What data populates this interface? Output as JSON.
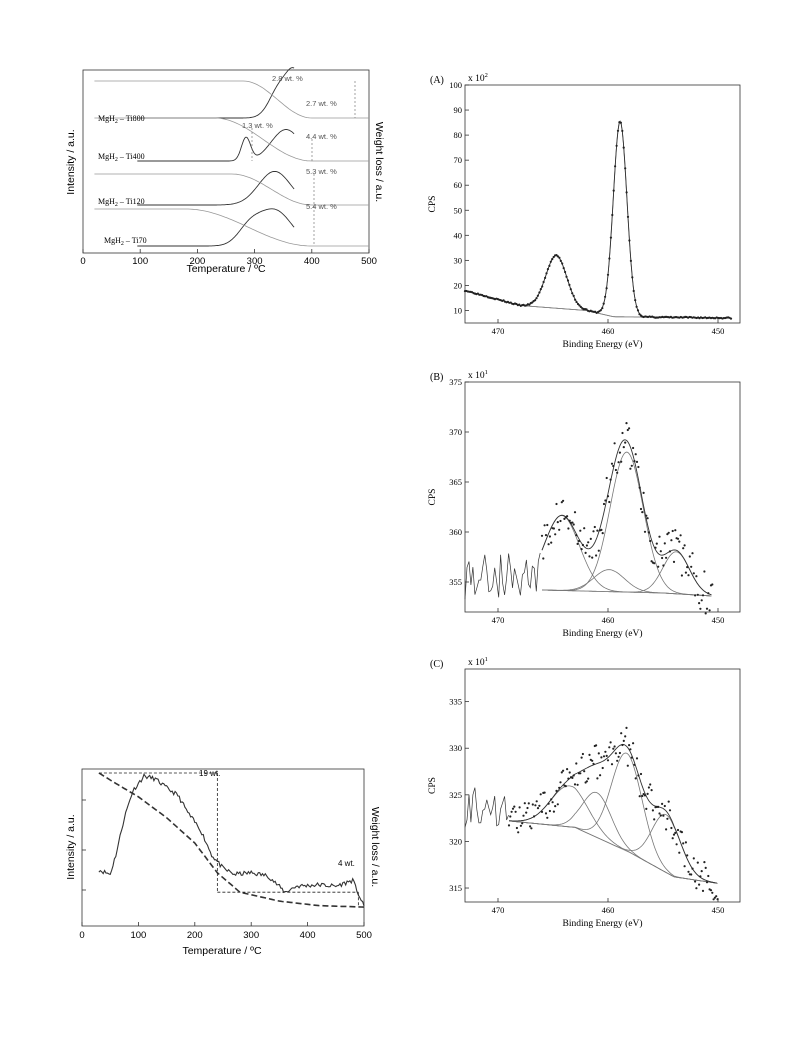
{
  "colors": {
    "ink": "#222222",
    "curve": "#333333",
    "fit": "#777777",
    "light": "#999999"
  },
  "chart_data": [
    {
      "id": "tg_top",
      "type": "line",
      "xlabel": "Temperature / ºC",
      "ylabel_left": "Intensity / a.u.",
      "ylabel_right": "Weight loss / a.u.",
      "xlim": [
        0,
        500
      ],
      "x_ticks": [
        "0",
        "100",
        "200",
        "300",
        "400",
        "500"
      ],
      "series": [
        {
          "name": "MgH2 – Ti800",
          "label_main": "MgH",
          "label_sub": "2",
          "label_rest": " – Ti800",
          "offset": 3,
          "tg_start": 280,
          "tg_end": 400,
          "dtg_peaks": [
            [
              345,
              0.75,
              18
            ],
            [
              372,
              0.9,
              14
            ]
          ],
          "annotations": [
            "2.8 wt. %",
            "2.7 wt. %"
          ]
        },
        {
          "name": "MgH2 – Ti400",
          "label_main": "MgH",
          "label_sub": "2",
          "label_rest": " – Ti400",
          "offset": 2,
          "tg_start": 230,
          "tg_end": 400,
          "dtg_peaks": [
            [
              285,
              0.55,
              8
            ],
            [
              355,
              0.75,
              26
            ]
          ],
          "annotations": [
            "1.3 wt. %",
            "4.4 wt. %"
          ]
        },
        {
          "name": "MgH2 – Ti120",
          "label_main": "MgH",
          "label_sub": "2",
          "label_rest": " – Ti120",
          "offset": 1,
          "tg_start": 260,
          "tg_end": 400,
          "dtg_peaks": [
            [
              335,
              0.8,
              28
            ]
          ],
          "annotations": [
            "5.3 wt. %"
          ]
        },
        {
          "name": "MgH2 – Ti70",
          "label_main": "MgH",
          "label_sub": "2",
          "label_rest": " – Ti70",
          "offset": 0,
          "tg_start": 180,
          "tg_end": 400,
          "dtg_peaks": [
            [
              290,
              0.35,
              20
            ],
            [
              335,
              0.85,
              30
            ]
          ],
          "annotations": [
            "5.4 wt. %"
          ]
        }
      ]
    },
    {
      "id": "tg_bottom",
      "type": "line",
      "xlabel": "Temperature / ºC",
      "ylabel_left": "Intensity / a.u.",
      "ylabel_right": "Weight loss / a.u.",
      "xlim": [
        0,
        500
      ],
      "x_ticks": [
        "0",
        "100",
        "200",
        "300",
        "400",
        "500"
      ],
      "annotations": [
        "19 wt.",
        "4 wt."
      ],
      "tg_curve": [
        [
          30,
          1.0
        ],
        [
          60,
          0.93
        ],
        [
          100,
          0.84
        ],
        [
          150,
          0.7
        ],
        [
          200,
          0.53
        ],
        [
          240,
          0.33
        ],
        [
          280,
          0.2
        ],
        [
          350,
          0.14
        ],
        [
          420,
          0.11
        ],
        [
          500,
          0.1
        ]
      ],
      "intensity_curve": [
        [
          30,
          0.35
        ],
        [
          50,
          0.32
        ],
        [
          60,
          0.45
        ],
        [
          75,
          0.7
        ],
        [
          90,
          0.88
        ],
        [
          110,
          0.98
        ],
        [
          130,
          0.96
        ],
        [
          150,
          0.9
        ],
        [
          170,
          0.85
        ],
        [
          190,
          0.72
        ],
        [
          210,
          0.62
        ],
        [
          230,
          0.45
        ],
        [
          250,
          0.36
        ],
        [
          270,
          0.32
        ],
        [
          300,
          0.33
        ],
        [
          330,
          0.31
        ],
        [
          360,
          0.2
        ],
        [
          380,
          0.24
        ],
        [
          420,
          0.25
        ],
        [
          450,
          0.24
        ],
        [
          480,
          0.28
        ],
        [
          500,
          0.1
        ]
      ]
    },
    {
      "id": "xps_A",
      "type": "scatter",
      "panel_label": "(A)",
      "scale_label_main": "x 10",
      "scale_label_exp": "2",
      "xlabel": "Binding Energy (eV)",
      "ylabel": "CPS",
      "xlim": [
        473,
        448
      ],
      "ylim": [
        5,
        100
      ],
      "x_ticks": [
        470,
        460,
        450
      ],
      "y_ticks": [
        10,
        20,
        30,
        40,
        50,
        60,
        70,
        80,
        90,
        100
      ],
      "components": [
        [
          464.7,
          21,
          0.95
        ],
        [
          458.9,
          78,
          0.62
        ]
      ],
      "background": [
        [
          473,
          18
        ],
        [
          468,
          12
        ],
        [
          462,
          10
        ],
        [
          459.5,
          7.5
        ],
        [
          448.8,
          7
        ]
      ]
    },
    {
      "id": "xps_B",
      "type": "scatter",
      "panel_label": "(B)",
      "scale_label_main": "x 10",
      "scale_label_exp": "1",
      "xlabel": "Binding Energy (eV)",
      "ylabel": "CPS",
      "xlim": [
        473,
        448
      ],
      "ylim": [
        352,
        375
      ],
      "x_ticks": [
        470,
        460,
        450
      ],
      "y_ticks": [
        355,
        360,
        365,
        370,
        375
      ],
      "components": [
        [
          464.2,
          7.5,
          1.6
        ],
        [
          459.9,
          2.2,
          1.4
        ],
        [
          458.3,
          14,
          1.5
        ],
        [
          453.8,
          4.2,
          1.2
        ]
      ],
      "background": [
        [
          466,
          354.2
        ],
        [
          455,
          353.9
        ],
        [
          450.5,
          353.6
        ]
      ]
    },
    {
      "id": "xps_C",
      "type": "scatter",
      "panel_label": "(C)",
      "scale_label_main": "x 10",
      "scale_label_exp": "1",
      "xlabel": "Binding Energy (eV)",
      "ylabel": "CPS",
      "xlim": [
        473,
        448
      ],
      "ylim": [
        313.5,
        338.5
      ],
      "x_ticks": [
        470,
        460,
        450
      ],
      "y_ticks": [
        315,
        320,
        325,
        330,
        335
      ],
      "components": [
        [
          463.5,
          4.4,
          1.7
        ],
        [
          461.0,
          4.8,
          1.3
        ],
        [
          458.3,
          10.5,
          1.4
        ],
        [
          454.7,
          6.2,
          1.3
        ]
      ],
      "background": [
        [
          469,
          322.2
        ],
        [
          463,
          321.5
        ],
        [
          458,
          318.8
        ],
        [
          454,
          316.2
        ],
        [
          450,
          315.5
        ]
      ]
    }
  ]
}
